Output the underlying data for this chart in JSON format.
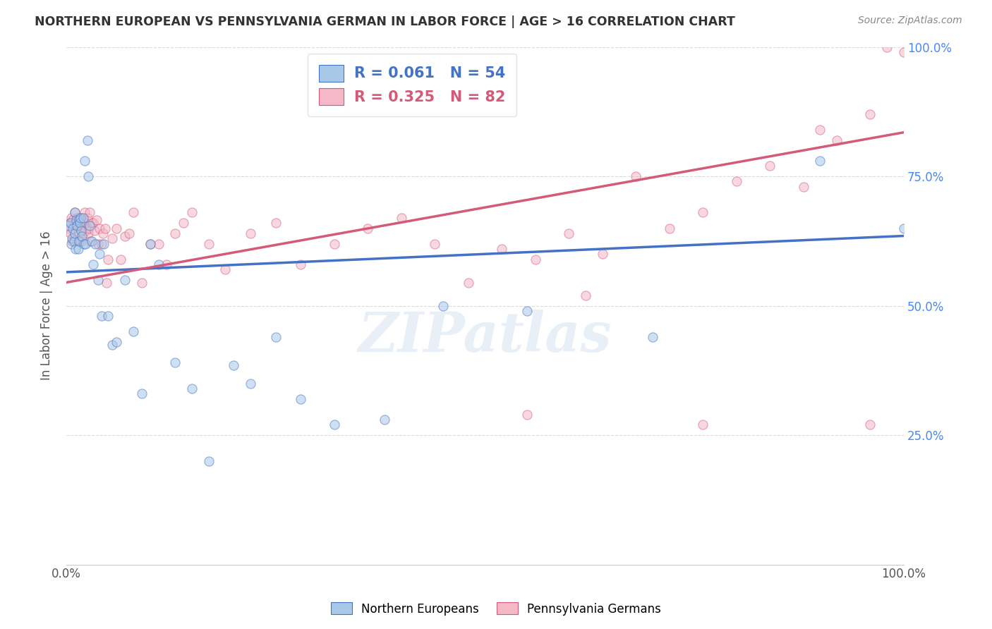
{
  "title": "NORTHERN EUROPEAN VS PENNSYLVANIA GERMAN IN LABOR FORCE | AGE > 16 CORRELATION CHART",
  "source": "Source: ZipAtlas.com",
  "ylabel": "In Labor Force | Age > 16",
  "blue_color": "#a8c8e8",
  "pink_color": "#f4b8c8",
  "blue_line_color": "#4472c4",
  "pink_line_color": "#d45a7a",
  "watermark": "ZIPatlas",
  "bg_color": "#ffffff",
  "grid_color": "#cccccc",
  "title_color": "#333333",
  "right_axis_color": "#4488ff",
  "marker_size": 90,
  "marker_alpha": 0.55,
  "xlim": [
    0,
    1
  ],
  "ylim": [
    0,
    1
  ],
  "blue_line_start_y": 0.565,
  "blue_line_end_y": 0.635,
  "pink_line_start_y": 0.545,
  "pink_line_end_y": 0.835,
  "blue_x": [
    0.003,
    0.005,
    0.006,
    0.007,
    0.008,
    0.009,
    0.01,
    0.01,
    0.011,
    0.012,
    0.013,
    0.014,
    0.015,
    0.015,
    0.016,
    0.017,
    0.018,
    0.019,
    0.02,
    0.021,
    0.022,
    0.023,
    0.025,
    0.026,
    0.028,
    0.03,
    0.032,
    0.035,
    0.038,
    0.04,
    0.042,
    0.045,
    0.05,
    0.055,
    0.06,
    0.07,
    0.08,
    0.09,
    0.1,
    0.11,
    0.13,
    0.15,
    0.17,
    0.2,
    0.22,
    0.25,
    0.28,
    0.32,
    0.38,
    0.45,
    0.55,
    0.7,
    0.9,
    1.0
  ],
  "blue_y": [
    0.655,
    0.66,
    0.62,
    0.63,
    0.65,
    0.625,
    0.64,
    0.68,
    0.61,
    0.665,
    0.655,
    0.61,
    0.665,
    0.625,
    0.66,
    0.67,
    0.645,
    0.635,
    0.67,
    0.62,
    0.78,
    0.62,
    0.82,
    0.75,
    0.655,
    0.625,
    0.58,
    0.62,
    0.55,
    0.6,
    0.48,
    0.62,
    0.48,
    0.425,
    0.43,
    0.55,
    0.45,
    0.33,
    0.62,
    0.58,
    0.39,
    0.34,
    0.2,
    0.385,
    0.35,
    0.44,
    0.32,
    0.27,
    0.28,
    0.5,
    0.49,
    0.44,
    0.78,
    0.65
  ],
  "pink_x": [
    0.002,
    0.004,
    0.005,
    0.006,
    0.007,
    0.008,
    0.009,
    0.01,
    0.01,
    0.011,
    0.012,
    0.013,
    0.014,
    0.015,
    0.015,
    0.016,
    0.017,
    0.018,
    0.019,
    0.02,
    0.021,
    0.022,
    0.023,
    0.024,
    0.025,
    0.026,
    0.027,
    0.028,
    0.029,
    0.03,
    0.032,
    0.034,
    0.036,
    0.038,
    0.04,
    0.042,
    0.044,
    0.046,
    0.048,
    0.05,
    0.055,
    0.06,
    0.065,
    0.07,
    0.075,
    0.08,
    0.09,
    0.1,
    0.11,
    0.12,
    0.13,
    0.14,
    0.15,
    0.17,
    0.19,
    0.22,
    0.25,
    0.28,
    0.32,
    0.36,
    0.4,
    0.44,
    0.48,
    0.52,
    0.56,
    0.6,
    0.64,
    0.68,
    0.72,
    0.76,
    0.8,
    0.84,
    0.88,
    0.92,
    0.96,
    0.55,
    0.62,
    0.76,
    0.9,
    0.96,
    0.98,
    1.0
  ],
  "pink_y": [
    0.65,
    0.66,
    0.64,
    0.67,
    0.625,
    0.665,
    0.635,
    0.66,
    0.68,
    0.645,
    0.655,
    0.67,
    0.625,
    0.64,
    0.67,
    0.655,
    0.66,
    0.625,
    0.67,
    0.64,
    0.66,
    0.68,
    0.645,
    0.66,
    0.67,
    0.64,
    0.65,
    0.68,
    0.625,
    0.66,
    0.66,
    0.645,
    0.665,
    0.62,
    0.65,
    0.62,
    0.64,
    0.65,
    0.545,
    0.59,
    0.63,
    0.65,
    0.59,
    0.635,
    0.64,
    0.68,
    0.545,
    0.62,
    0.62,
    0.58,
    0.64,
    0.66,
    0.68,
    0.62,
    0.57,
    0.64,
    0.66,
    0.58,
    0.62,
    0.65,
    0.67,
    0.62,
    0.545,
    0.61,
    0.59,
    0.64,
    0.6,
    0.75,
    0.65,
    0.68,
    0.74,
    0.77,
    0.73,
    0.82,
    0.87,
    0.29,
    0.52,
    0.27,
    0.84,
    0.27,
    1.0,
    0.99
  ]
}
